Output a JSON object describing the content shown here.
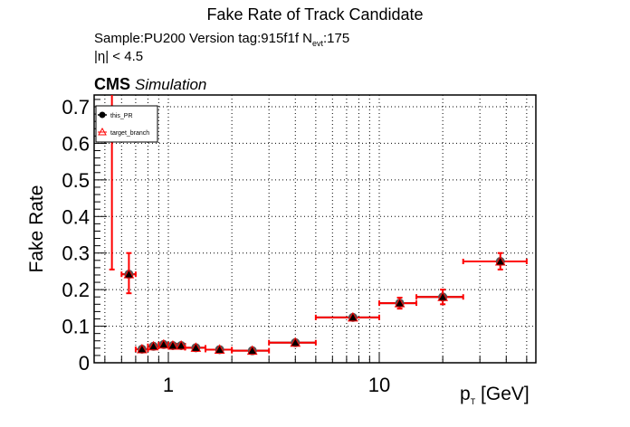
{
  "chart_data": {
    "type": "scatter",
    "title": "Fake Rate of Track Candidate",
    "subtitle_line1": "Sample:PU200   Version tag:915f1f  N",
    "subtitle_line1_sub": "evt",
    "subtitle_line1_end": ":175",
    "subtitle_line2": "|η| < 4.5",
    "cms_label": "CMS",
    "cms_sublabel": "Simulation",
    "xlabel": "p",
    "xlabel_sub": "T",
    "xlabel_end": " [GeV]",
    "ylabel": "Fake Rate",
    "xscale": "log",
    "xlim": [
      0.445,
      55
    ],
    "ylim": [
      0,
      0.73
    ],
    "x_tick_labels": [
      "1",
      "10"
    ],
    "y_tick_labels": [
      "0",
      "0.1",
      "0.2",
      "0.3",
      "0.4",
      "0.5",
      "0.6",
      "0.7"
    ],
    "grid": true,
    "legend": {
      "position": "top-left",
      "entries": [
        "this_PR",
        "target_branch"
      ]
    },
    "series": [
      {
        "name": "this_PR",
        "marker": "filled-circle",
        "color": "#000000",
        "points": [
          {
            "x": 0.54,
            "xlo": 0.5,
            "xhi": 0.6,
            "y": 0.8,
            "ylo": 0.255,
            "yhi": 1.0
          },
          {
            "x": 0.65,
            "xlo": 0.6,
            "xhi": 0.7,
            "y": 0.242,
            "ylo": 0.19,
            "yhi": 0.3
          },
          {
            "x": 0.75,
            "xlo": 0.7,
            "xhi": 0.8,
            "y": 0.037,
            "ylo": 0.031,
            "yhi": 0.043
          },
          {
            "x": 0.85,
            "xlo": 0.8,
            "xhi": 0.9,
            "y": 0.045,
            "ylo": 0.04,
            "yhi": 0.05
          },
          {
            "x": 0.95,
            "xlo": 0.9,
            "xhi": 1.0,
            "y": 0.05,
            "ylo": 0.046,
            "yhi": 0.054
          },
          {
            "x": 1.05,
            "xlo": 1.0,
            "xhi": 1.1,
            "y": 0.047,
            "ylo": 0.043,
            "yhi": 0.051
          },
          {
            "x": 1.15,
            "xlo": 1.1,
            "xhi": 1.2,
            "y": 0.047,
            "ylo": 0.043,
            "yhi": 0.051
          },
          {
            "x": 1.35,
            "xlo": 1.2,
            "xhi": 1.5,
            "y": 0.041,
            "ylo": 0.037,
            "yhi": 0.045
          },
          {
            "x": 1.75,
            "xlo": 1.5,
            "xhi": 2.0,
            "y": 0.036,
            "ylo": 0.032,
            "yhi": 0.04
          },
          {
            "x": 2.5,
            "xlo": 2.0,
            "xhi": 3.0,
            "y": 0.033,
            "ylo": 0.029,
            "yhi": 0.037
          },
          {
            "x": 4.0,
            "xlo": 3.0,
            "xhi": 5.0,
            "y": 0.055,
            "ylo": 0.049,
            "yhi": 0.061
          },
          {
            "x": 7.5,
            "xlo": 5.0,
            "xhi": 10.0,
            "y": 0.124,
            "ylo": 0.118,
            "yhi": 0.13
          },
          {
            "x": 12.5,
            "xlo": 10.0,
            "xhi": 15.0,
            "y": 0.163,
            "ylo": 0.148,
            "yhi": 0.178
          },
          {
            "x": 20.0,
            "xlo": 15.0,
            "xhi": 25.0,
            "y": 0.18,
            "ylo": 0.16,
            "yhi": 0.2
          },
          {
            "x": 37.5,
            "xlo": 25.0,
            "xhi": 50.0,
            "y": 0.277,
            "ylo": 0.255,
            "yhi": 0.3
          }
        ]
      },
      {
        "name": "target_branch",
        "marker": "open-triangle",
        "color": "#ff0000",
        "points": "same as this_PR"
      }
    ]
  }
}
